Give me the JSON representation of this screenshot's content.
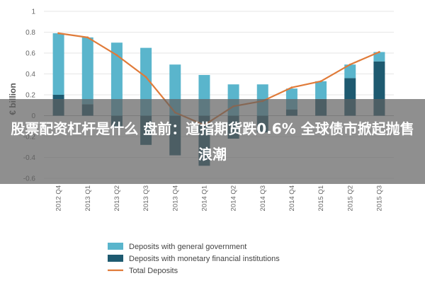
{
  "overlay": {
    "title": "股票配资杠杆是什么 盘前：道指期货跌0.6% 全球债市掀起抛售浪潮"
  },
  "chart_data": {
    "type": "bar",
    "ylabel": "€ billion",
    "ylim": [
      -0.6,
      1.0
    ],
    "yticks": [
      "-0.6",
      "-0.4",
      "-0.2",
      "0",
      "0.2",
      "0.4",
      "0.6",
      "0.8",
      "1"
    ],
    "categories": [
      "2012 Q4",
      "2013 Q1",
      "2013 Q2",
      "2013 Q3",
      "2013 Q4",
      "2014 Q1",
      "2014 Q2",
      "2014 Q3",
      "2014 Q4",
      "2015 Q1",
      "2015 Q2",
      "2015 Q3"
    ],
    "series": [
      {
        "name": "Deposits with general government",
        "kind": "stacked-bar",
        "color": "#5ab5cc",
        "values": [
          0.59,
          0.64,
          0.7,
          0.65,
          0.49,
          0.39,
          0.3,
          0.3,
          0.2,
          0.17,
          0.13,
          0.09
        ]
      },
      {
        "name": "Deposits with monetary financial institutions",
        "kind": "stacked-bar",
        "color": "#1e5a70",
        "values": [
          0.2,
          0.11,
          -0.12,
          -0.28,
          -0.38,
          -0.48,
          -0.22,
          -0.16,
          0.06,
          0.16,
          0.36,
          0.52
        ]
      },
      {
        "name": "Total Deposits",
        "kind": "line",
        "color": "#e07b39",
        "values": [
          0.79,
          0.75,
          0.58,
          0.37,
          0.03,
          -0.09,
          0.09,
          0.14,
          0.27,
          0.33,
          0.49,
          0.61
        ]
      }
    ],
    "legend_position": "bottom"
  }
}
